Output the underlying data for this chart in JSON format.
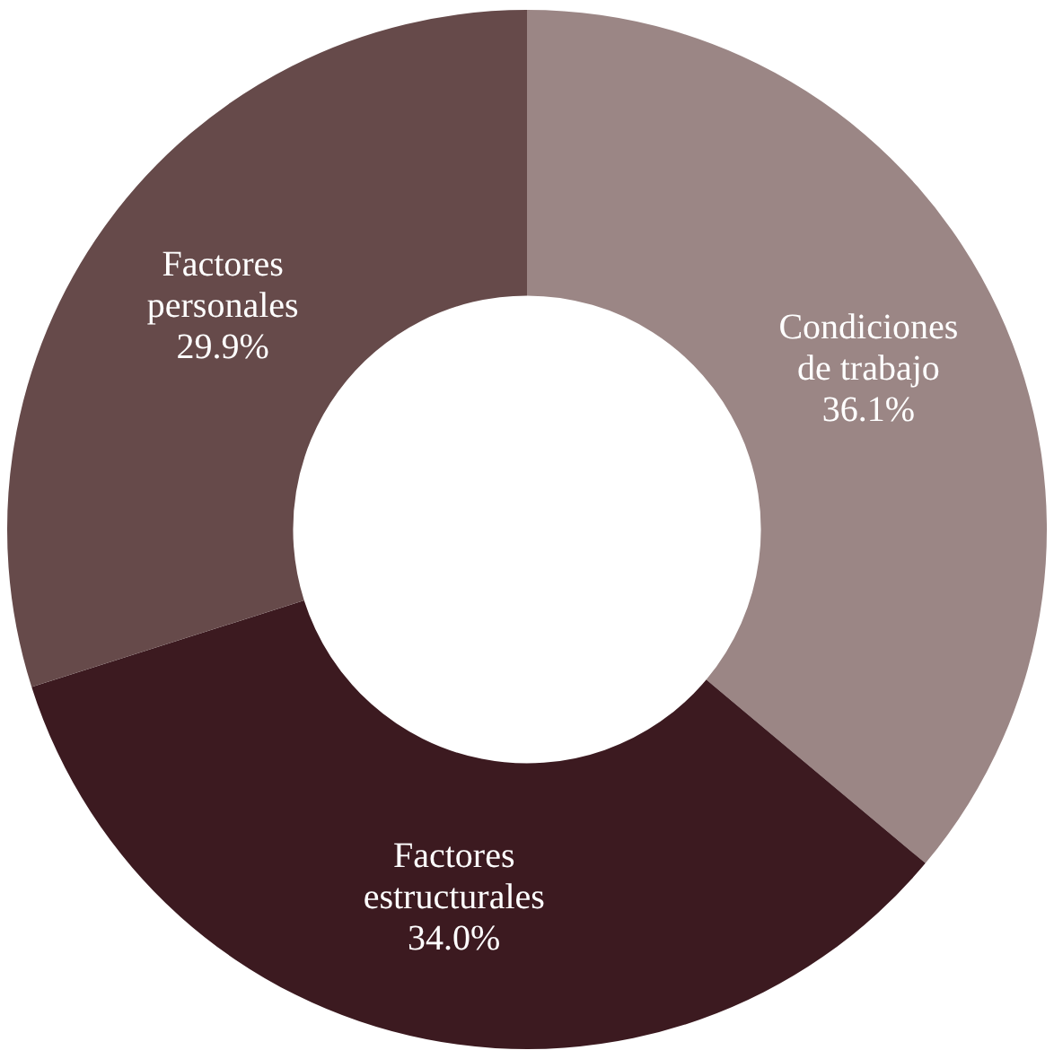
{
  "chart_data": {
    "type": "donut",
    "categories": [
      "Condiciones de trabajo",
      "Factores estructurales",
      "Factores personales"
    ],
    "values": [
      36.1,
      34.0,
      29.9
    ],
    "colors": [
      "#9b8685",
      "#3c1a20",
      "#664a4a"
    ],
    "value_labels": [
      "36.1%",
      "34.0%",
      "29.9%"
    ],
    "legend": false
  }
}
